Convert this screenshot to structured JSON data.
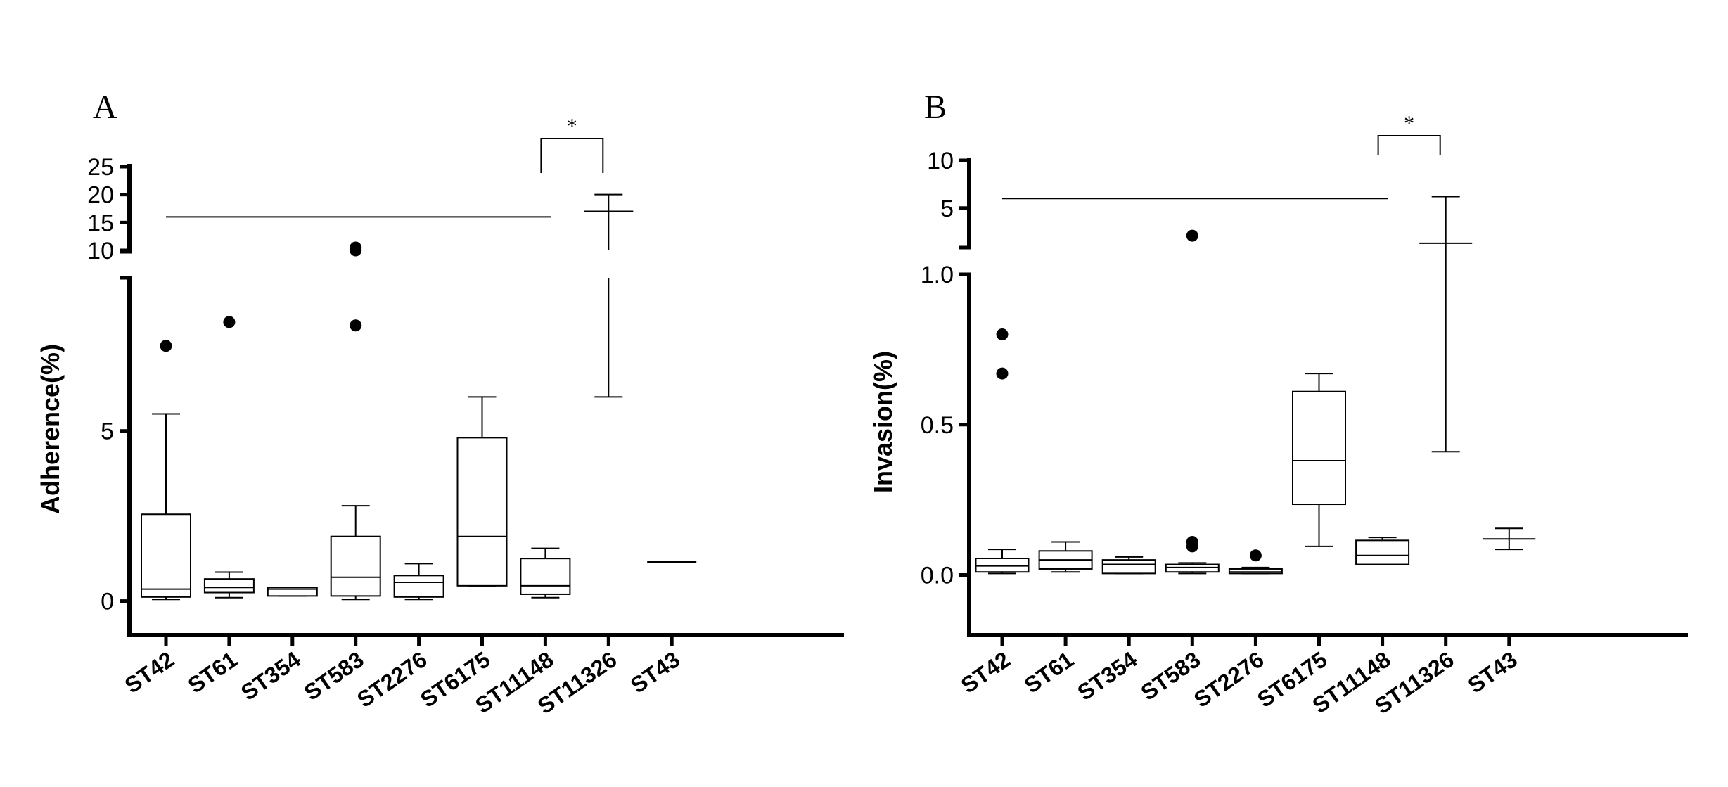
{
  "chart_data": [
    {
      "type": "box",
      "panel_label": "A",
      "ylabel": "Adherence(%)",
      "categories": [
        "ST42",
        "ST61",
        "ST354",
        "ST583",
        "ST2276",
        "ST6175",
        "ST11148",
        "ST11326",
        "ST43"
      ],
      "axis_break": true,
      "y_lower_range": [
        -1,
        9.5
      ],
      "y_lower_ticks": [
        "0",
        "5"
      ],
      "y_upper_range": [
        10,
        25
      ],
      "y_upper_ticks": [
        "10",
        "15",
        "20",
        "25"
      ],
      "boxes": [
        {
          "category": "ST42",
          "min": 0.05,
          "q1": 0.12,
          "median": 0.35,
          "q3": 2.55,
          "max": 5.5,
          "outliers": [
            7.5
          ]
        },
        {
          "category": "ST61",
          "min": 0.1,
          "q1": 0.25,
          "median": 0.4,
          "q3": 0.65,
          "max": 0.85,
          "outliers": [
            8.2
          ]
        },
        {
          "category": "ST354",
          "min": 0.15,
          "q1": 0.15,
          "median": 0.35,
          "q3": 0.4,
          "max": 0.4,
          "outliers": []
        },
        {
          "category": "ST583",
          "min": 0.05,
          "q1": 0.15,
          "median": 0.7,
          "q3": 1.9,
          "max": 2.8,
          "outliers": [
            8.1,
            10.5,
            10.0
          ]
        },
        {
          "category": "ST2276",
          "min": 0.05,
          "q1": 0.12,
          "median": 0.55,
          "q3": 0.75,
          "max": 1.1,
          "outliers": []
        },
        {
          "category": "ST6175",
          "min": 0.45,
          "q1": 0.45,
          "median": 1.9,
          "q3": 4.8,
          "max": 6.0,
          "outliers": []
        },
        {
          "category": "ST11148",
          "min": 0.1,
          "q1": 0.2,
          "median": 0.45,
          "q3": 1.25,
          "max": 1.55,
          "outliers": []
        },
        {
          "category": "ST11326",
          "min": 6.0,
          "q1": 17.0,
          "median": 17.0,
          "q3": 17.0,
          "max": 20.0,
          "outliers": []
        },
        {
          "category": "ST43",
          "min": 1.15,
          "q1": 1.15,
          "median": 1.15,
          "q3": 1.15,
          "max": 1.15,
          "outliers": []
        }
      ],
      "reference_line": {
        "from": "ST42",
        "to": "ST11148",
        "y": 16
      },
      "significance": {
        "from": "ST11148",
        "to": "ST11326",
        "label": "*"
      }
    },
    {
      "type": "box",
      "panel_label": "B",
      "ylabel": "Invasion(%)",
      "categories": [
        "ST42",
        "ST61",
        "ST354",
        "ST583",
        "ST2276",
        "ST6175",
        "ST11148",
        "ST11326",
        "ST43"
      ],
      "axis_break": true,
      "y_lower_range": [
        -0.2,
        1.0
      ],
      "y_lower_ticks": [
        "0.0",
        "0.5",
        "1.0"
      ],
      "y_upper_range": [
        1,
        10
      ],
      "y_upper_ticks": [
        "5",
        "10"
      ],
      "boxes": [
        {
          "category": "ST42",
          "min": 0.005,
          "q1": 0.01,
          "median": 0.03,
          "q3": 0.055,
          "max": 0.085,
          "outliers": [
            0.67,
            0.8
          ]
        },
        {
          "category": "ST61",
          "min": 0.01,
          "q1": 0.02,
          "median": 0.05,
          "q3": 0.08,
          "max": 0.11,
          "outliers": []
        },
        {
          "category": "ST354",
          "min": 0.005,
          "q1": 0.005,
          "median": 0.035,
          "q3": 0.05,
          "max": 0.06,
          "outliers": []
        },
        {
          "category": "ST583",
          "min": 0.005,
          "q1": 0.01,
          "median": 0.025,
          "q3": 0.035,
          "max": 0.04,
          "outliers": [
            0.095,
            0.11,
            2.1
          ]
        },
        {
          "category": "ST2276",
          "min": 0.005,
          "q1": 0.005,
          "median": 0.01,
          "q3": 0.02,
          "max": 0.025,
          "outliers": [
            0.065
          ]
        },
        {
          "category": "ST6175",
          "min": 0.095,
          "q1": 0.235,
          "median": 0.38,
          "q3": 0.61,
          "max": 0.67,
          "outliers": []
        },
        {
          "category": "ST11148",
          "min": 0.035,
          "q1": 0.035,
          "median": 0.065,
          "q3": 0.115,
          "max": 0.125,
          "outliers": []
        },
        {
          "category": "ST11326",
          "min": 0.41,
          "q1": 1.3,
          "median": 1.3,
          "q3": 1.3,
          "max": 6.2,
          "outliers": []
        },
        {
          "category": "ST43",
          "min": 0.085,
          "q1": 0.12,
          "median": 0.12,
          "q3": 0.12,
          "max": 0.155,
          "outliers": []
        }
      ],
      "reference_line": {
        "from": "ST42",
        "to": "ST11148",
        "y": 6
      },
      "significance": {
        "from": "ST11148",
        "to": "ST11326",
        "label": "*"
      }
    }
  ]
}
